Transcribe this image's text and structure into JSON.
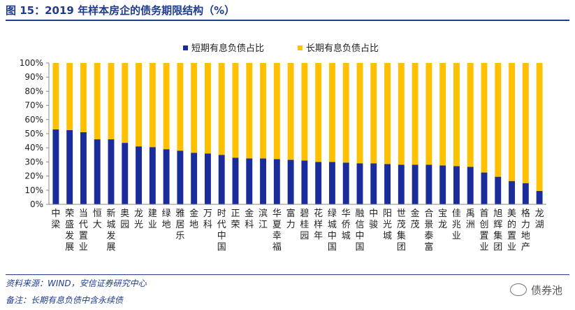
{
  "header": {
    "title": "图 15：2019 年样本房企的债务期限结构（%）"
  },
  "colors": {
    "short": "#1a2b9a",
    "long": "#ffc000"
  },
  "chart_data": {
    "type": "bar",
    "stacked": true,
    "title": "",
    "xlabel": "",
    "ylabel": "",
    "ylim": [
      0,
      100
    ],
    "yticks": [
      0,
      10,
      20,
      30,
      40,
      50,
      60,
      70,
      80,
      90,
      100
    ],
    "ytick_labels": [
      "0%",
      "10%",
      "20%",
      "30%",
      "40%",
      "50%",
      "60%",
      "70%",
      "80%",
      "90%",
      "100%"
    ],
    "legend_position": "top-center",
    "categories": [
      "中梁",
      "荣盛发展",
      "当代置业",
      "恒大",
      "新城发展",
      "奥园",
      "龙光",
      "建业",
      "绿地",
      "雅居乐",
      "金地",
      "万科",
      "时代中国",
      "正荣",
      "金科",
      "滨江",
      "华夏幸福",
      "富力",
      "碧桂园",
      "花样年",
      "绿城中国",
      "华侨城",
      "融信中国",
      "中骏",
      "阳光城",
      "世茂集团",
      "金茂",
      "合景泰富",
      "宝龙",
      "佳兆业",
      "禹洲",
      "首创置业",
      "旭辉集团",
      "美的置业",
      "格力地产",
      "龙湖"
    ],
    "series": [
      {
        "name": "短期有息负债占比",
        "values": [
          53,
          52.5,
          51,
          46,
          46,
          43.5,
          41,
          40.5,
          39,
          38,
          36.5,
          36,
          35,
          33,
          32.5,
          32.5,
          32,
          31.5,
          31,
          30,
          30,
          29.5,
          29,
          29,
          28.5,
          28,
          28,
          28,
          27.5,
          27,
          26.5,
          22.5,
          19.5,
          16.5,
          15,
          9.5
        ]
      },
      {
        "name": "长期有息负债占比",
        "values": [
          47,
          47.5,
          49,
          54,
          54,
          56.5,
          59,
          59.5,
          61,
          62,
          63.5,
          64,
          65,
          67,
          67.5,
          67.5,
          68,
          68.5,
          69,
          70,
          70,
          70.5,
          71,
          71,
          71.5,
          72,
          72,
          72,
          72.5,
          73,
          73.5,
          77.5,
          80.5,
          83.5,
          85,
          90.5
        ]
      }
    ]
  },
  "footer": {
    "source": "资料来源：WIND，安信证券研究中心",
    "remark": "备注：长期有息负债中含永续债",
    "watermark": "债券池"
  }
}
